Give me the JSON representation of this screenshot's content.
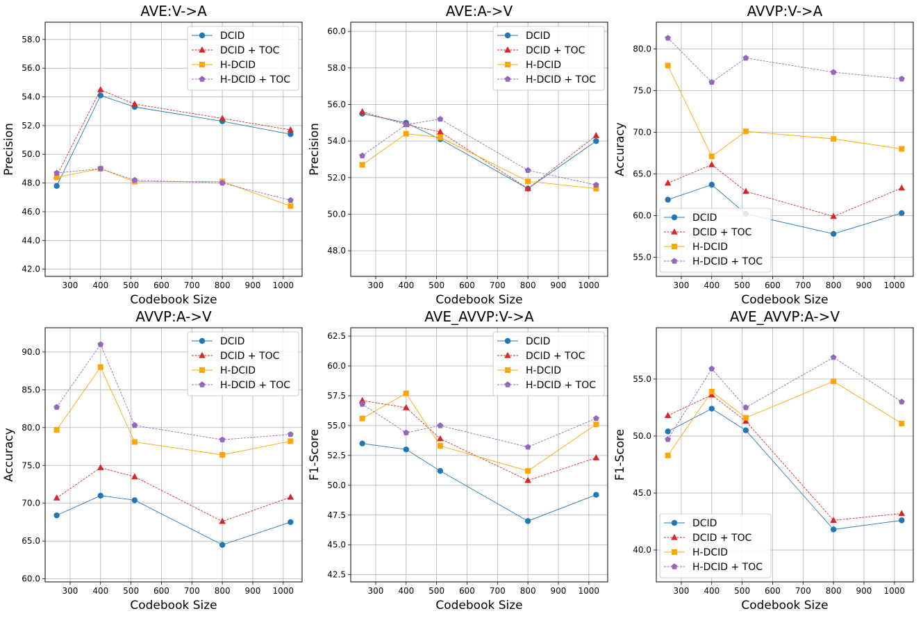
{
  "chart_data": [
    {
      "type": "line",
      "title": "AVE:V->A",
      "xlabel": "Codebook Size",
      "ylabel": "Precision",
      "x": [
        256,
        400,
        512,
        800,
        1024
      ],
      "xticks": [
        "300",
        "400",
        "500",
        "600",
        "700",
        "800",
        "900",
        "1000"
      ],
      "yticks": [
        "42.0",
        "44.0",
        "46.0",
        "48.0",
        "50.0",
        "52.0",
        "54.0",
        "56.0",
        "58.0"
      ],
      "ylim": [
        41.5,
        59.2
      ],
      "legend": "top-right",
      "series": [
        {
          "name": "DCID",
          "values": [
            47.8,
            54.1,
            53.3,
            52.3,
            51.4
          ]
        },
        {
          "name": "DCID + TOC",
          "values": [
            48.5,
            54.5,
            53.5,
            52.5,
            51.7
          ]
        },
        {
          "name": "H-DCID",
          "values": [
            48.4,
            49.0,
            48.1,
            48.1,
            46.4
          ]
        },
        {
          "name": "H-DCID + TOC",
          "values": [
            48.7,
            49.0,
            48.2,
            48.0,
            46.8
          ]
        }
      ]
    },
    {
      "type": "line",
      "title": "AVE:A->V",
      "xlabel": "Codebook Size",
      "ylabel": "Precision",
      "x": [
        256,
        400,
        512,
        800,
        1024
      ],
      "xticks": [
        "300",
        "400",
        "500",
        "600",
        "700",
        "800",
        "900",
        "1000"
      ],
      "yticks": [
        "48.0",
        "50.0",
        "52.0",
        "54.0",
        "56.0",
        "58.0",
        "60.0"
      ],
      "ylim": [
        46.6,
        60.5
      ],
      "legend": "top-right",
      "series": [
        {
          "name": "DCID",
          "values": [
            55.5,
            55.0,
            54.1,
            51.4,
            54.0
          ]
        },
        {
          "name": "DCID + TOC",
          "values": [
            55.6,
            54.9,
            54.5,
            51.4,
            54.3
          ]
        },
        {
          "name": "H-DCID",
          "values": [
            52.7,
            54.4,
            54.2,
            51.8,
            51.4
          ]
        },
        {
          "name": "H-DCID + TOC",
          "values": [
            53.2,
            54.9,
            55.2,
            52.4,
            51.6
          ]
        }
      ]
    },
    {
      "type": "line",
      "title": "AVVP:V->A",
      "xlabel": "Codebook Size",
      "ylabel": "Accuracy",
      "x": [
        256,
        400,
        512,
        800,
        1024
      ],
      "xticks": [
        "300",
        "400",
        "500",
        "600",
        "700",
        "800",
        "900",
        "1000"
      ],
      "yticks": [
        "55.0",
        "60.0",
        "65.0",
        "70.0",
        "75.0",
        "80.0"
      ],
      "ylim": [
        52.7,
        83.2
      ],
      "legend": "bottom-left",
      "series": [
        {
          "name": "DCID",
          "values": [
            61.9,
            63.7,
            60.2,
            57.8,
            60.3
          ]
        },
        {
          "name": "DCID + TOC",
          "values": [
            63.9,
            66.1,
            62.9,
            59.9,
            63.3
          ]
        },
        {
          "name": "H-DCID",
          "values": [
            78.0,
            67.1,
            70.1,
            69.2,
            68.0
          ]
        },
        {
          "name": "H-DCID + TOC",
          "values": [
            81.3,
            76.0,
            78.9,
            77.2,
            76.4
          ]
        }
      ]
    },
    {
      "type": "line",
      "title": "AVVP:A->V",
      "xlabel": "Codebook Size",
      "ylabel": "Accuracy",
      "x": [
        256,
        400,
        512,
        800,
        1024
      ],
      "xticks": [
        "300",
        "400",
        "500",
        "600",
        "700",
        "800",
        "900",
        "1000"
      ],
      "yticks": [
        "60.0",
        "65.0",
        "70.0",
        "75.0",
        "80.0",
        "85.0",
        "90.0"
      ],
      "ylim": [
        59.6,
        93.2
      ],
      "legend": "top-right",
      "series": [
        {
          "name": "DCID",
          "values": [
            68.4,
            71.0,
            70.4,
            64.5,
            67.5
          ]
        },
        {
          "name": "DCID + TOC",
          "values": [
            70.7,
            74.7,
            73.5,
            67.6,
            70.8
          ]
        },
        {
          "name": "H-DCID",
          "values": [
            79.7,
            88.0,
            78.1,
            76.4,
            78.2
          ]
        },
        {
          "name": "H-DCID + TOC",
          "values": [
            82.7,
            91.0,
            80.3,
            78.4,
            79.1
          ]
        }
      ]
    },
    {
      "type": "line",
      "title": "AVE_AVVP:V->A",
      "xlabel": "Codebook Size",
      "ylabel": "F1-Score",
      "x": [
        256,
        400,
        512,
        800,
        1024
      ],
      "xticks": [
        "300",
        "400",
        "500",
        "600",
        "700",
        "800",
        "900",
        "1000"
      ],
      "yticks": [
        "42.5",
        "45.0",
        "47.5",
        "50.0",
        "52.5",
        "55.0",
        "57.5",
        "60.0",
        "62.5"
      ],
      "ylim": [
        41.9,
        63.2
      ],
      "legend": "top-right",
      "series": [
        {
          "name": "DCID",
          "values": [
            53.5,
            53.0,
            51.2,
            47.0,
            49.2
          ]
        },
        {
          "name": "DCID + TOC",
          "values": [
            57.1,
            56.5,
            53.9,
            50.4,
            52.3
          ]
        },
        {
          "name": "H-DCID",
          "values": [
            55.6,
            57.7,
            53.3,
            51.2,
            55.1
          ]
        },
        {
          "name": "H-DCID + TOC",
          "values": [
            56.8,
            54.4,
            55.0,
            53.2,
            55.6
          ]
        }
      ]
    },
    {
      "type": "line",
      "title": "AVE_AVVP:A->V",
      "xlabel": "Codebook Size",
      "ylabel": "F1-Score",
      "x": [
        256,
        400,
        512,
        800,
        1024
      ],
      "xticks": [
        "300",
        "400",
        "500",
        "600",
        "700",
        "800",
        "900",
        "1000"
      ],
      "yticks": [
        "40.0",
        "45.0",
        "50.0",
        "55.0"
      ],
      "ylim": [
        37.2,
        59.5
      ],
      "legend": "bottom-left",
      "series": [
        {
          "name": "DCID",
          "values": [
            50.4,
            52.4,
            50.5,
            41.8,
            42.6
          ]
        },
        {
          "name": "DCID + TOC",
          "values": [
            51.8,
            53.6,
            51.3,
            42.6,
            43.2
          ]
        },
        {
          "name": "H-DCID",
          "values": [
            48.3,
            53.9,
            51.6,
            54.8,
            51.1
          ]
        },
        {
          "name": "H-DCID + TOC",
          "values": [
            49.7,
            55.9,
            52.5,
            56.9,
            53.0
          ]
        }
      ]
    }
  ],
  "style": {
    "colors": [
      "#1f77b4",
      "#d62728",
      "#ffa500",
      "#9467bd"
    ],
    "markers": [
      "circle",
      "triangle",
      "square",
      "pentagon"
    ],
    "dashed": [
      false,
      true,
      false,
      true
    ]
  }
}
